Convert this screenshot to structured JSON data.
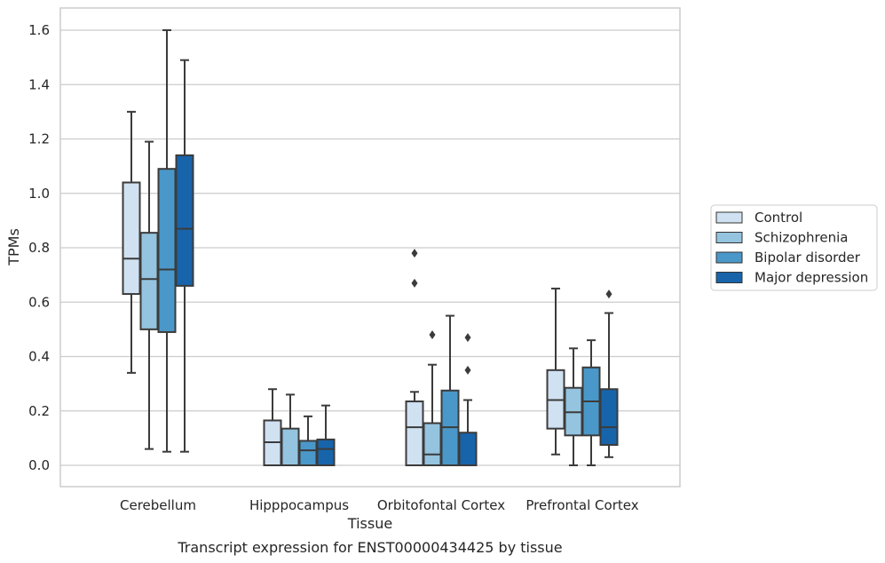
{
  "chart_data": {
    "type": "box",
    "caption": "Transcript expression for ENST00000434425 by tissue",
    "xlabel": "Tissue",
    "ylabel": "TPMs",
    "ylim": [
      -0.08,
      1.68
    ],
    "yticks": [
      0.0,
      0.2,
      0.4,
      0.6,
      0.8,
      1.0,
      1.2,
      1.4,
      1.6
    ],
    "ytick_labels": [
      "0.0",
      "0.2",
      "0.4",
      "0.6",
      "0.8",
      "1.0",
      "1.2",
      "1.4",
      "1.6"
    ],
    "grid": "horizontal",
    "legend_position": "right",
    "categories": [
      "Cerebellum",
      "Hipppocampus",
      "Orbitofontal Cortex",
      "Prefrontal Cortex"
    ],
    "series": [
      {
        "name": "Control",
        "color": "#d0e1f2",
        "boxes": [
          {
            "whislo": 0.34,
            "q1": 0.63,
            "med": 0.76,
            "q3": 1.04,
            "whishi": 1.3,
            "fliers": []
          },
          {
            "whislo": 0.0,
            "q1": 0.0,
            "med": 0.085,
            "q3": 0.165,
            "whishi": 0.28,
            "fliers": []
          },
          {
            "whislo": 0.0,
            "q1": 0.0,
            "med": 0.14,
            "q3": 0.235,
            "whishi": 0.27,
            "fliers": [
              0.67,
              0.78
            ]
          },
          {
            "whislo": 0.04,
            "q1": 0.135,
            "med": 0.24,
            "q3": 0.35,
            "whishi": 0.65,
            "fliers": []
          }
        ]
      },
      {
        "name": "Schizophrenia",
        "color": "#94c4df",
        "boxes": [
          {
            "whislo": 0.06,
            "q1": 0.5,
            "med": 0.685,
            "q3": 0.855,
            "whishi": 1.19,
            "fliers": []
          },
          {
            "whislo": 0.0,
            "q1": 0.0,
            "med": 0.0,
            "q3": 0.135,
            "whishi": 0.26,
            "fliers": []
          },
          {
            "whislo": 0.0,
            "q1": 0.0,
            "med": 0.04,
            "q3": 0.155,
            "whishi": 0.37,
            "fliers": [
              0.48
            ]
          },
          {
            "whislo": 0.0,
            "q1": 0.11,
            "med": 0.195,
            "q3": 0.285,
            "whishi": 0.43,
            "fliers": []
          }
        ]
      },
      {
        "name": "Bipolar disorder",
        "color": "#4a98c9",
        "boxes": [
          {
            "whislo": 0.05,
            "q1": 0.49,
            "med": 0.72,
            "q3": 1.09,
            "whishi": 1.6,
            "fliers": []
          },
          {
            "whislo": 0.0,
            "q1": 0.0,
            "med": 0.055,
            "q3": 0.09,
            "whishi": 0.18,
            "fliers": []
          },
          {
            "whislo": 0.0,
            "q1": 0.0,
            "med": 0.14,
            "q3": 0.275,
            "whishi": 0.55,
            "fliers": []
          },
          {
            "whislo": 0.0,
            "q1": 0.11,
            "med": 0.235,
            "q3": 0.36,
            "whishi": 0.46,
            "fliers": []
          }
        ]
      },
      {
        "name": "Major depression",
        "color": "#1764ab",
        "boxes": [
          {
            "whislo": 0.05,
            "q1": 0.66,
            "med": 0.87,
            "q3": 1.14,
            "whishi": 1.49,
            "fliers": []
          },
          {
            "whislo": 0.0,
            "q1": 0.0,
            "med": 0.06,
            "q3": 0.095,
            "whishi": 0.22,
            "fliers": []
          },
          {
            "whislo": 0.0,
            "q1": 0.0,
            "med": 0.0,
            "q3": 0.12,
            "whishi": 0.24,
            "fliers": [
              0.35,
              0.47
            ]
          },
          {
            "whislo": 0.03,
            "q1": 0.075,
            "med": 0.14,
            "q3": 0.28,
            "whishi": 0.56,
            "fliers": [
              0.63
            ]
          }
        ]
      }
    ]
  }
}
